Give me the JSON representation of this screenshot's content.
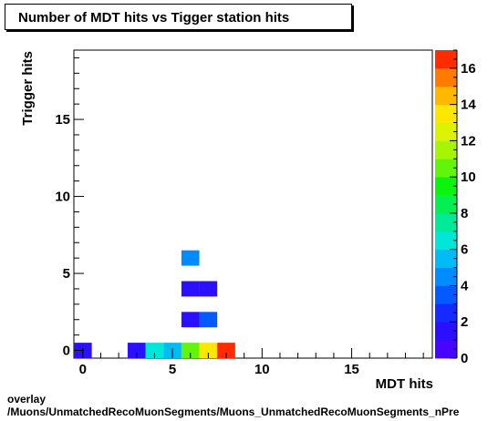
{
  "chart_data": {
    "type": "heatmap",
    "title": "Number of MDT hits vs Tigger station hits",
    "xlabel": "MDT hits",
    "ylabel": "Trigger hits",
    "xlim": [
      -0.5,
      19.5
    ],
    "ylim": [
      -0.5,
      19.5
    ],
    "x_ticks": [
      0,
      5,
      10,
      15
    ],
    "y_ticks": [
      0,
      5,
      10,
      15
    ],
    "zlim": [
      0,
      17
    ],
    "z_ticks": [
      0,
      2,
      4,
      6,
      8,
      10,
      12,
      14,
      16
    ],
    "cells": [
      {
        "x": 0,
        "y": 0,
        "z": 1
      },
      {
        "x": 3,
        "y": 0,
        "z": 1
      },
      {
        "x": 4,
        "y": 0,
        "z": 6
      },
      {
        "x": 5,
        "y": 0,
        "z": 5
      },
      {
        "x": 6,
        "y": 0,
        "z": 10
      },
      {
        "x": 7,
        "y": 0,
        "z": 13
      },
      {
        "x": 8,
        "y": 0,
        "z": 17
      },
      {
        "x": 6,
        "y": 2,
        "z": 1
      },
      {
        "x": 7,
        "y": 2,
        "z": 3
      },
      {
        "x": 6,
        "y": 4,
        "z": 1
      },
      {
        "x": 7,
        "y": 4,
        "z": 1
      },
      {
        "x": 6,
        "y": 6,
        "z": 4
      }
    ]
  },
  "footer": {
    "line1": "overlay",
    "line2": "/Muons/UnmatchedRecoMuonSegments/Muons_UnmatchedRecoMuonSegments_nPre"
  }
}
